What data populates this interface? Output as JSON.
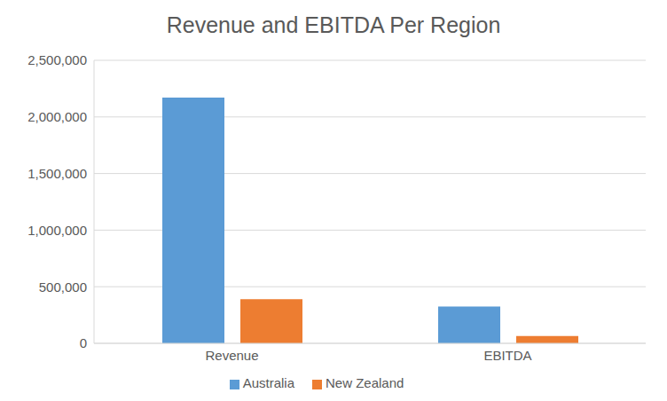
{
  "chart_data": {
    "type": "bar",
    "title": "Revenue and EBITDA Per Region",
    "categories": [
      "Revenue",
      "EBITDA"
    ],
    "series": [
      {
        "name": "Australia",
        "color": "#5b9bd5",
        "values": [
          2170000,
          325000
        ]
      },
      {
        "name": "New Zealand",
        "color": "#ed7d31",
        "values": [
          390000,
          65000
        ]
      }
    ],
    "ylim": [
      0,
      2500000
    ],
    "yticks": [
      0,
      {
        "value": 500000,
        "label": "500,000"
      },
      {
        "value": 1000000,
        "label": "1,000,000"
      },
      {
        "value": 1500000,
        "label": "1,500,000"
      },
      {
        "value": 2000000,
        "label": "2,000,000"
      },
      {
        "value": 2500000,
        "label": "2,500,000"
      }
    ],
    "grid": true,
    "legend": "bottom"
  }
}
